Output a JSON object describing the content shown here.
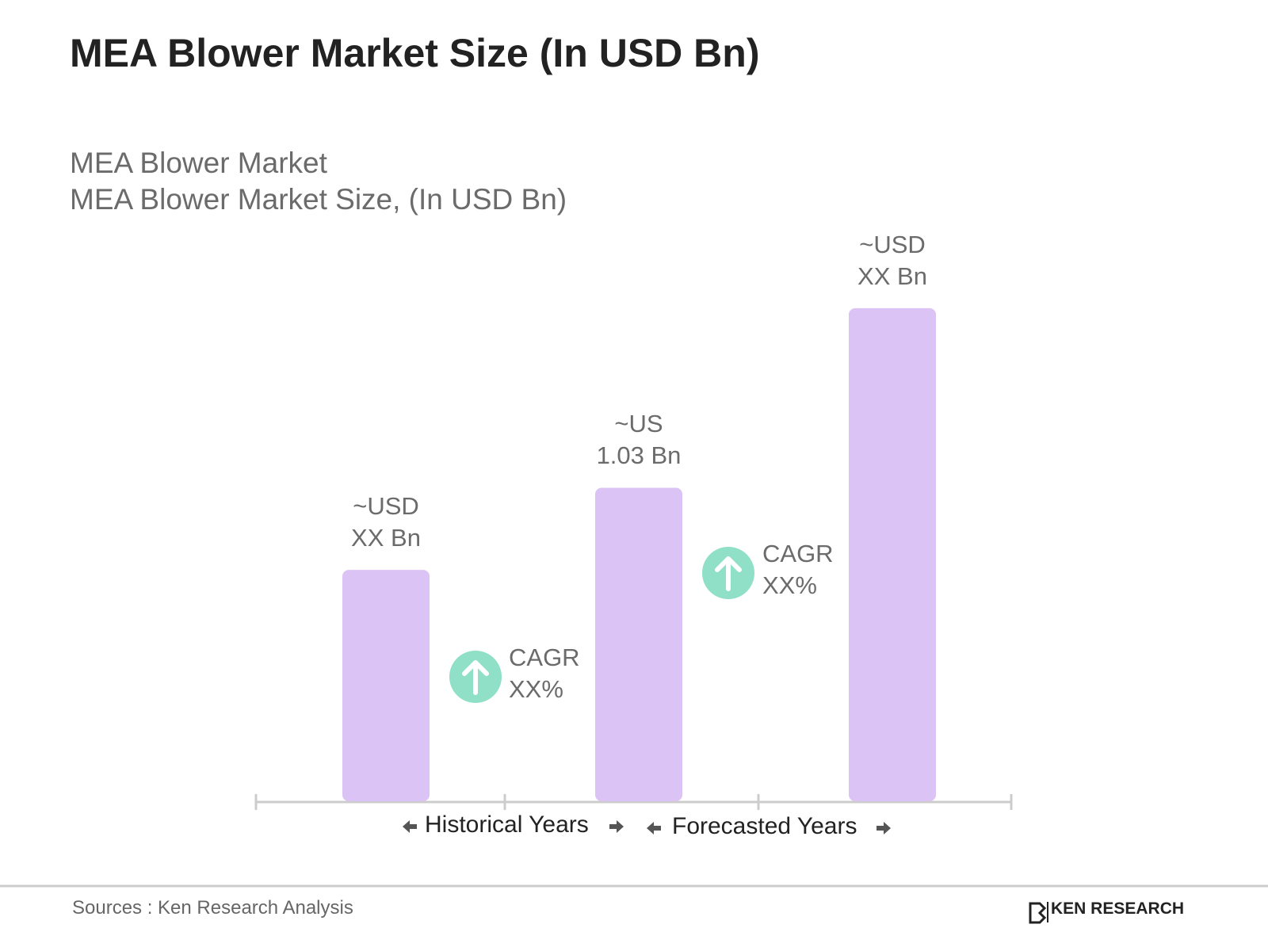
{
  "chart_data": {
    "type": "bar",
    "title": "MEA Blower Market Size (In USD Bn)",
    "subtitle": [
      "MEA Blower Market",
      "MEA Blower Market Size, (In USD Bn)"
    ],
    "categories": [
      null,
      null,
      null
    ],
    "values": [
      0.76,
      1.03,
      1.62
    ],
    "value_labels": [
      "~USD\nXX Bn",
      "~US\n1.03 Bn",
      "~USD\nXX Bn"
    ],
    "color": "#dcc3f5",
    "annotations": [
      "CAGR\nXX%",
      "CAGR\nXX%"
    ],
    "periods": [
      "Historical Years",
      "Forecasted Years"
    ]
  },
  "footer": {
    "source": "Sources : Ken Research Analysis",
    "brand": "KEN RESEARCH"
  }
}
